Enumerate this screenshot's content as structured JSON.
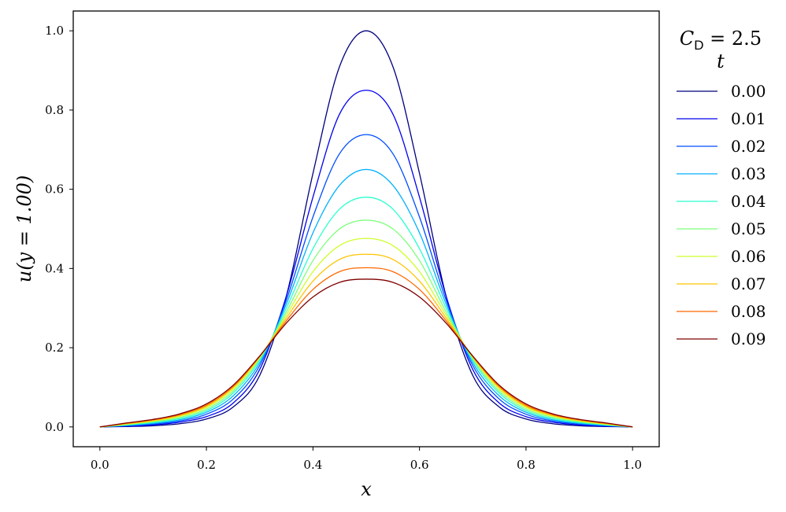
{
  "chart_data": {
    "type": "line",
    "xlabel": "x",
    "ylabel": "u(y = 1.00)",
    "xlim": [
      -0.05,
      1.05
    ],
    "ylim": [
      -0.05,
      1.05
    ],
    "xticks": [
      "0.0",
      "0.2",
      "0.4",
      "0.6",
      "0.8",
      "1.0"
    ],
    "yticks": [
      "0.0",
      "0.2",
      "0.4",
      "0.6",
      "0.8",
      "1.0"
    ],
    "grid": false,
    "legend": {
      "placement": "outside-right",
      "title_line1": "C_D = 2.5",
      "title_main": "C",
      "title_sub": "D",
      "title_rest": " = 2.5",
      "title_line2": "t"
    },
    "x": [
      0.0,
      0.05,
      0.1,
      0.15,
      0.2,
      0.25,
      0.3,
      0.35,
      0.4,
      0.45,
      0.5,
      0.55,
      0.6,
      0.65,
      0.7,
      0.75,
      0.8,
      0.85,
      0.9,
      0.95,
      1.0
    ],
    "series": [
      {
        "name": "0.00",
        "color": "#00007f",
        "values": [
          0.0,
          0.001,
          0.003,
          0.008,
          0.02,
          0.05,
          0.13,
          0.33,
          0.64,
          0.91,
          1.0,
          0.91,
          0.64,
          0.33,
          0.13,
          0.05,
          0.02,
          0.008,
          0.003,
          0.001,
          0.0
        ]
      },
      {
        "name": "0.01",
        "color": "#0000f1",
        "values": [
          0.0,
          0.002,
          0.005,
          0.012,
          0.026,
          0.06,
          0.145,
          0.33,
          0.58,
          0.79,
          0.85,
          0.79,
          0.58,
          0.33,
          0.145,
          0.06,
          0.026,
          0.012,
          0.005,
          0.002,
          0.0
        ]
      },
      {
        "name": "0.02",
        "color": "#004dff",
        "values": [
          0.0,
          0.003,
          0.007,
          0.015,
          0.032,
          0.07,
          0.155,
          0.32,
          0.53,
          0.69,
          0.738,
          0.69,
          0.53,
          0.32,
          0.155,
          0.07,
          0.032,
          0.015,
          0.007,
          0.003,
          0.0
        ]
      },
      {
        "name": "0.03",
        "color": "#00b1ff",
        "values": [
          0.0,
          0.004,
          0.009,
          0.018,
          0.037,
          0.078,
          0.162,
          0.31,
          0.49,
          0.61,
          0.65,
          0.61,
          0.49,
          0.31,
          0.162,
          0.078,
          0.037,
          0.018,
          0.009,
          0.004,
          0.0
        ]
      },
      {
        "name": "0.04",
        "color": "#29ffce",
        "values": [
          0.0,
          0.005,
          0.011,
          0.021,
          0.041,
          0.085,
          0.168,
          0.3,
          0.45,
          0.55,
          0.58,
          0.55,
          0.45,
          0.3,
          0.168,
          0.085,
          0.041,
          0.021,
          0.011,
          0.005,
          0.0
        ]
      },
      {
        "name": "0.05",
        "color": "#7dff7a",
        "values": [
          0.0,
          0.006,
          0.013,
          0.024,
          0.045,
          0.09,
          0.172,
          0.29,
          0.42,
          0.5,
          0.522,
          0.5,
          0.42,
          0.29,
          0.172,
          0.09,
          0.045,
          0.024,
          0.013,
          0.006,
          0.0
        ]
      },
      {
        "name": "0.06",
        "color": "#ceff29",
        "values": [
          0.0,
          0.007,
          0.015,
          0.027,
          0.049,
          0.095,
          0.175,
          0.282,
          0.392,
          0.458,
          0.476,
          0.458,
          0.392,
          0.282,
          0.175,
          0.095,
          0.049,
          0.027,
          0.015,
          0.007,
          0.0
        ]
      },
      {
        "name": "0.07",
        "color": "#ffc400",
        "values": [
          0.0,
          0.008,
          0.016,
          0.029,
          0.052,
          0.099,
          0.177,
          0.275,
          0.368,
          0.423,
          0.436,
          0.423,
          0.368,
          0.275,
          0.177,
          0.099,
          0.052,
          0.029,
          0.016,
          0.008,
          0.0
        ]
      },
      {
        "name": "0.08",
        "color": "#ff6800",
        "values": [
          0.0,
          0.009,
          0.018,
          0.031,
          0.055,
          0.102,
          0.178,
          0.268,
          0.347,
          0.392,
          0.402,
          0.392,
          0.347,
          0.268,
          0.178,
          0.102,
          0.055,
          0.031,
          0.018,
          0.009,
          0.0
        ]
      },
      {
        "name": "0.09",
        "color": "#7f0000",
        "values": [
          0.0,
          0.01,
          0.019,
          0.033,
          0.058,
          0.105,
          0.179,
          0.262,
          0.328,
          0.365,
          0.373,
          0.365,
          0.328,
          0.262,
          0.179,
          0.105,
          0.058,
          0.033,
          0.019,
          0.01,
          0.0
        ]
      }
    ]
  }
}
